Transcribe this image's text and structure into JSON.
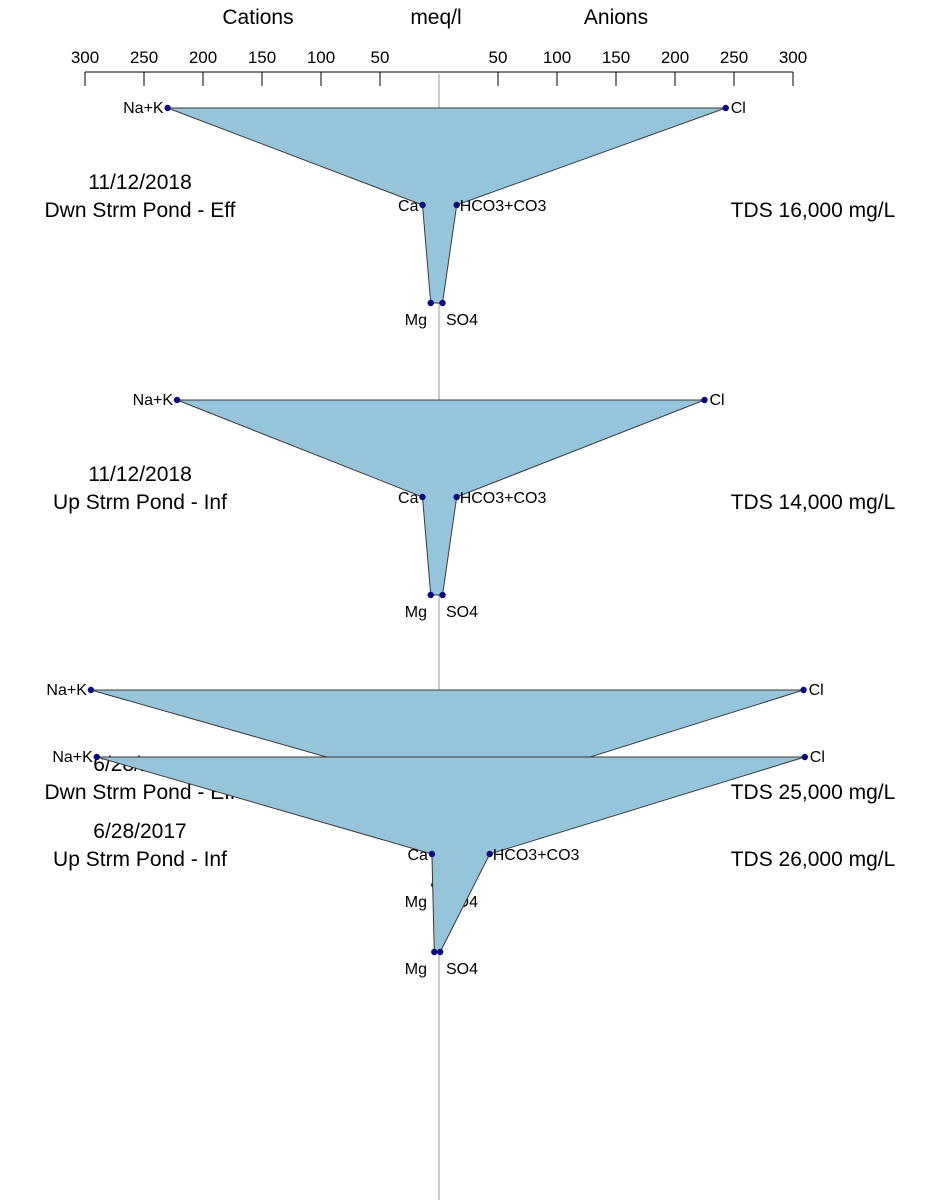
{
  "chart_data": {
    "type": "stiff",
    "header": {
      "left_label": "Cations",
      "center_label": "meq/l",
      "right_label": "Anions"
    },
    "axis": {
      "cation_ticks": [
        "300",
        "250",
        "200",
        "150",
        "100",
        "50"
      ],
      "anion_ticks": [
        "50",
        "100",
        "150",
        "200",
        "250",
        "300"
      ],
      "range": [
        0,
        300
      ]
    },
    "ion_labels": {
      "cation_top": "Na+K",
      "cation_mid": "Ca",
      "cation_bottom": "Mg",
      "anion_top": "Cl",
      "anion_mid": "HCO3+CO3",
      "anion_bottom": "SO4"
    },
    "fill_color": "#96C4DB",
    "marker_color": "#0a0a7a",
    "samples": [
      {
        "date": "11/12/2018",
        "name": "Dwn Strm Pond - Eff",
        "tds": "TDS 16,000 mg/L",
        "cations": {
          "Na+K": 230,
          "Ca": 14,
          "Mg": 7
        },
        "anions": {
          "Cl": 243,
          "HCO3+CO3": 15,
          "SO4": 3
        }
      },
      {
        "date": "11/12/2018",
        "name": "Up Strm Pond - Inf",
        "tds": "TDS 14,000 mg/L",
        "cations": {
          "Na+K": 222,
          "Ca": 14,
          "Mg": 7
        },
        "anions": {
          "Cl": 225,
          "HCO3+CO3": 15,
          "SO4": 3
        }
      },
      {
        "date": "6/28/2017",
        "name": "Dwn Strm Pond - Eff",
        "tds": "TDS 25,000 mg/L",
        "cations": {
          "Na+K": 295,
          "Ca": 6,
          "Mg": 4
        },
        "anions": {
          "Cl": 309,
          "HCO3+CO3": 47,
          "SO4": 1
        }
      },
      {
        "date": "6/28/2017",
        "name": "Up Strm Pond - Inf",
        "tds": "TDS 26,000 mg/L",
        "cations": {
          "Na+K": 290,
          "Ca": 6,
          "Mg": 4
        },
        "anions": {
          "Cl": 310,
          "HCO3+CO3": 43,
          "SO4": 1
        }
      }
    ]
  }
}
